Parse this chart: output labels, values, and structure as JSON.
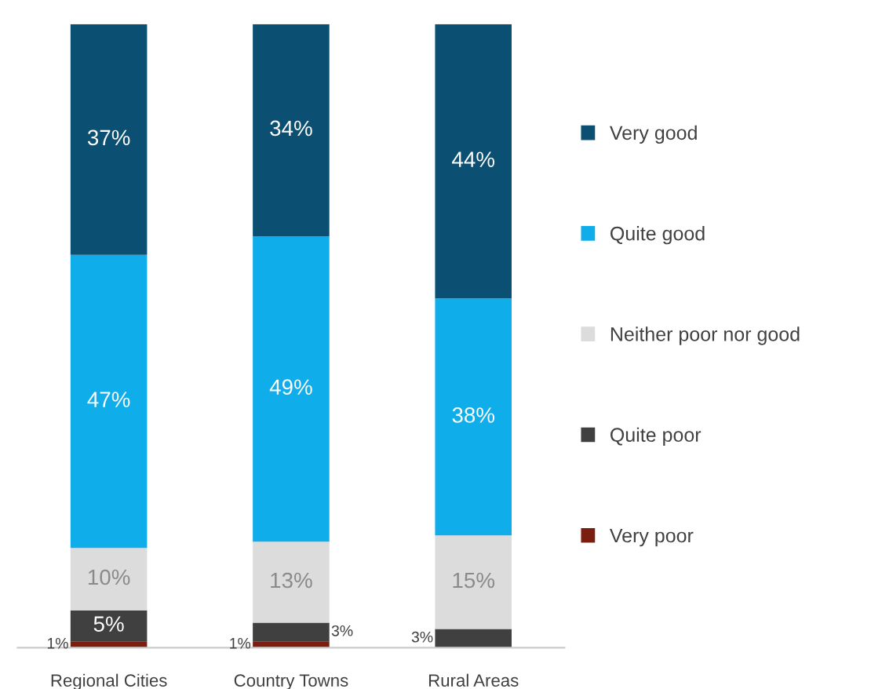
{
  "chart_data": {
    "type": "bar",
    "stacked": true,
    "categories": [
      "Regional Cities",
      "Country Towns",
      "Rural Areas"
    ],
    "series": [
      {
        "name": "Very poor",
        "color": "#7a1f10",
        "values": [
          1,
          1,
          0
        ],
        "value_labels": [
          "1%",
          "1%",
          null
        ]
      },
      {
        "name": "Quite poor",
        "color": "#404040",
        "values": [
          5,
          3,
          3
        ],
        "value_labels": [
          "5%",
          "3%",
          "3%"
        ]
      },
      {
        "name": "Neither poor nor good",
        "color": "#dcdcdc",
        "values": [
          10,
          13,
          15
        ],
        "value_labels": [
          "10%",
          "13%",
          "15%"
        ]
      },
      {
        "name": "Quite good",
        "color": "#0fadea",
        "values": [
          47,
          49,
          38
        ],
        "value_labels": [
          "47%",
          "49%",
          "38%"
        ]
      },
      {
        "name": "Very good",
        "color": "#0b4f73",
        "values": [
          37,
          34,
          44
        ],
        "value_labels": [
          "37%",
          "34%",
          "44%"
        ]
      }
    ],
    "legend": "right",
    "tick_labels": "x",
    "grid": false
  }
}
